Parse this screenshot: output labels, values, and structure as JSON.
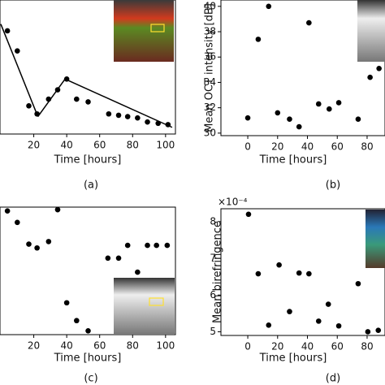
{
  "chart_data": [
    {
      "type": "scatter",
      "caption": "(a)",
      "x_label": "Time [hours]",
      "xlim": [
        -0.5,
        106
      ],
      "xticks": [
        20,
        40,
        60,
        80,
        100
      ],
      "ylim": [
        0,
        1
      ],
      "color": "#000000",
      "x": [
        4,
        10,
        17,
        22,
        29,
        34.5,
        40,
        46,
        53,
        65.5,
        71.5,
        77,
        83,
        89,
        95.5,
        101.5
      ],
      "values": [
        0.77,
        0.62,
        0.21,
        0.15,
        0.26,
        0.33,
        0.41,
        0.26,
        0.24,
        0.15,
        0.14,
        0.13,
        0.12,
        0.09,
        0.08,
        0.07
      ],
      "fit_lines": [
        {
          "x": [
            0,
            22.5
          ],
          "y": [
            0.82,
            0.13
          ]
        },
        {
          "x": [
            22.5,
            39
          ],
          "y": [
            0.13,
            0.41
          ]
        },
        {
          "x": [
            39,
            104
          ],
          "y": [
            0.41,
            0.05
          ]
        }
      ]
    },
    {
      "type": "scatter",
      "caption": "(b)",
      "x_label": "Time [hours]",
      "y_label": "Mean OCT intensity [dB]",
      "xlim": [
        -18,
        92
      ],
      "xticks": [
        0,
        20,
        40,
        60,
        80
      ],
      "ylim": [
        29.8,
        40.5
      ],
      "yticks": [
        30,
        32,
        34,
        36,
        38,
        40
      ],
      "color": "#000000",
      "x": [
        0,
        7,
        14,
        20,
        28,
        34.4,
        41,
        47.5,
        54.6,
        61,
        74,
        82,
        88
      ],
      "values": [
        31.2,
        37.4,
        40,
        31.6,
        31.1,
        30.5,
        38.7,
        32.3,
        31.9,
        32.4,
        31.1,
        34.4,
        35.1
      ]
    },
    {
      "type": "scatter",
      "caption": "(c)",
      "x_label": "Time [hours]",
      "xlim": [
        -0.5,
        106
      ],
      "xticks": [
        20,
        40,
        60,
        80,
        100
      ],
      "ylim": [
        0,
        1
      ],
      "color": "#000000",
      "x": [
        4,
        10,
        17,
        22,
        29,
        34.5,
        40,
        46,
        53,
        65,
        71.5,
        77,
        83,
        89,
        94.5,
        101
      ],
      "values": [
        0.97,
        0.88,
        0.71,
        0.68,
        0.73,
        0.98,
        0.25,
        0.11,
        0.03,
        0.6,
        0.6,
        0.7,
        0.49,
        0.7,
        0.7,
        0.7
      ]
    },
    {
      "type": "scatter",
      "caption": "(d)",
      "x_label": "Time [hours]",
      "y_label": "Mean birefringence",
      "offset_label": "×10⁻⁴",
      "xlim": [
        -18,
        92
      ],
      "xticks": [
        0,
        20,
        40,
        60,
        80
      ],
      "ylim": [
        4.9,
        8.35
      ],
      "yticks": [
        5,
        6,
        7,
        8
      ],
      "color": "#000000",
      "x": [
        0.5,
        7,
        14,
        21,
        28,
        34.4,
        41,
        47.5,
        54,
        61,
        74,
        80.5,
        87.5
      ],
      "values": [
        8.2,
        6.58,
        5.18,
        6.82,
        5.55,
        6.6,
        6.58,
        5.29,
        5.75,
        5.16,
        6.31,
        5.0,
        5.04
      ]
    }
  ]
}
